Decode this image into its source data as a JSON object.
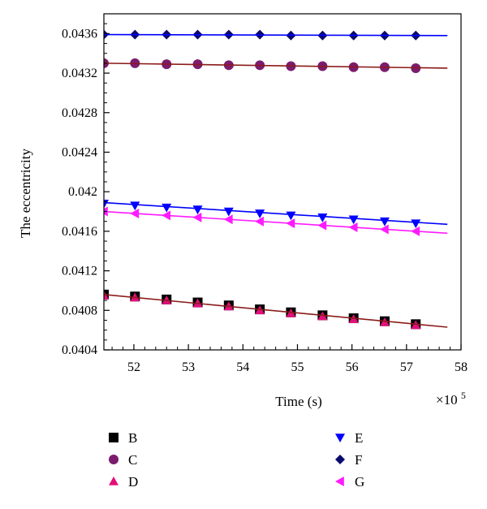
{
  "chart_data": {
    "type": "scatter",
    "xlabel": "Time (s)",
    "x_multiplier_label": "×10",
    "x_multiplier_exp": "5",
    "ylabel": "The eccentricity",
    "xlim": [
      51.45,
      58
    ],
    "ylim": [
      0.0404,
      0.0438
    ],
    "x_ticks": [
      52,
      53,
      54,
      55,
      56,
      57,
      58
    ],
    "x_tick_labels": [
      "52",
      "53",
      "54",
      "55",
      "56",
      "57",
      "58"
    ],
    "y_ticks": [
      0.0404,
      0.0408,
      0.0412,
      0.0416,
      0.042,
      0.0424,
      0.0428,
      0.0432,
      0.0436
    ],
    "y_tick_labels": [
      "0.0404",
      "0.0408",
      "0.0412",
      "0.0416",
      "0.042",
      "0.0424",
      "0.0428",
      "0.0432",
      "0.0436"
    ],
    "grid": false,
    "legend_position": "bottom",
    "x": [
      51.45,
      52.02,
      52.6,
      53.17,
      53.74,
      54.31,
      54.88,
      55.46,
      56.03,
      56.6,
      57.17
    ],
    "series": [
      {
        "name": "B",
        "marker": "square",
        "color": "#000000",
        "fit_color": "#8b1a1a",
        "values": [
          0.04096,
          0.04094,
          0.04091,
          0.04088,
          0.04085,
          0.04081,
          0.04078,
          0.04075,
          0.04072,
          0.04069,
          0.04066
        ],
        "fit": [
          [
            51.45,
            0.04096
          ],
          [
            57.75,
            0.04063
          ]
        ]
      },
      {
        "name": "C",
        "marker": "circle",
        "color": "#7b1c6e",
        "fit_color": "#8b1a1a",
        "values": [
          0.0433,
          0.0433,
          0.04329,
          0.04329,
          0.04328,
          0.04328,
          0.04327,
          0.04327,
          0.04326,
          0.04326,
          0.04325
        ],
        "fit": [
          [
            51.45,
            0.0433
          ],
          [
            57.75,
            0.04325
          ]
        ]
      },
      {
        "name": "D",
        "marker": "triangle-up",
        "color": "#e0107a",
        "fit_color": "#8b1a1a",
        "values": [
          0.04095,
          0.04093,
          0.0409,
          0.04087,
          0.04084,
          0.0408,
          0.04077,
          0.04074,
          0.04071,
          0.04068,
          0.04065
        ],
        "fit": []
      },
      {
        "name": "E",
        "marker": "triangle-down",
        "color": "#0000ff",
        "fit_color": "#0000ff",
        "values": [
          0.04188,
          0.04186,
          0.04184,
          0.04182,
          0.0418,
          0.04178,
          0.04176,
          0.04174,
          0.04172,
          0.0417,
          0.04168
        ],
        "fit": [
          [
            51.45,
            0.04189
          ],
          [
            57.75,
            0.04167
          ]
        ]
      },
      {
        "name": "F",
        "marker": "diamond",
        "color": "#0a0a6e",
        "fit_color": "#0000ff",
        "values": [
          0.04359,
          0.04359,
          0.04359,
          0.04359,
          0.04359,
          0.04359,
          0.04358,
          0.04358,
          0.04358,
          0.04358,
          0.04358
        ],
        "fit": [
          [
            51.45,
            0.04359
          ],
          [
            57.75,
            0.04358
          ]
        ]
      },
      {
        "name": "G",
        "marker": "triangle-left",
        "color": "#ff1aff",
        "fit_color": "#ff1aff",
        "values": [
          0.0418,
          0.04178,
          0.04176,
          0.04174,
          0.04172,
          0.0417,
          0.04168,
          0.04166,
          0.04164,
          0.04162,
          0.0416
        ],
        "fit": [
          [
            51.45,
            0.0418
          ],
          [
            57.75,
            0.04158
          ]
        ]
      }
    ]
  }
}
